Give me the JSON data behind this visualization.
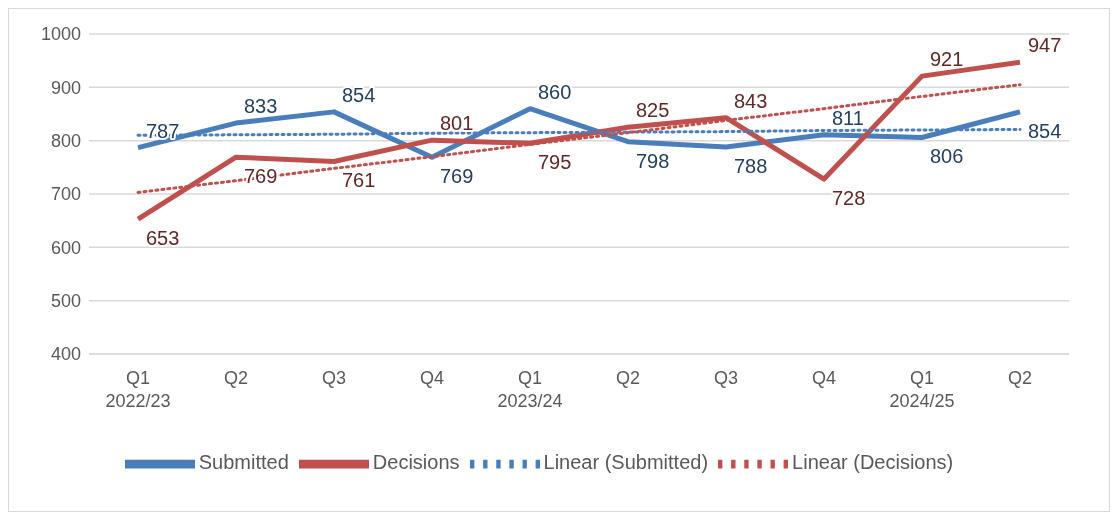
{
  "chart_data": {
    "type": "line",
    "categories": [
      "Q1 2022/23",
      "Q2",
      "Q3",
      "Q4",
      "Q1 2023/24",
      "Q2",
      "Q3",
      "Q4",
      "Q1 2024/25",
      "Q2"
    ],
    "series": [
      {
        "name": "Submitted",
        "color": "#4a7ebb",
        "values": [
          787,
          833,
          854,
          769,
          860,
          798,
          788,
          811,
          806,
          854
        ],
        "value_labels": [
          "787",
          "833",
          "854",
          "769",
          "860",
          "798",
          "788",
          "811",
          "806",
          "854"
        ]
      },
      {
        "name": "Decisions",
        "color": "#c0504d",
        "values": [
          653,
          769,
          761,
          801,
          795,
          825,
          843,
          728,
          921,
          947
        ],
        "value_labels": [
          "653",
          "769",
          "761",
          "801",
          "795",
          "825",
          "843",
          "728",
          "921",
          "947"
        ]
      },
      {
        "name": "Linear (Submitted)",
        "color": "#4a7ebb",
        "line_style": "dotted",
        "values": [
          810,
          811,
          812,
          814,
          815,
          816,
          817,
          819,
          820,
          821
        ]
      },
      {
        "name": "Linear (Decisions)",
        "color": "#c0504d",
        "line_style": "dotted",
        "values": [
          703,
          725,
          748,
          770,
          793,
          815,
          838,
          860,
          883,
          905
        ]
      }
    ],
    "ylim": [
      400,
      1000
    ],
    "yticks": [
      400,
      500,
      600,
      700,
      800,
      900,
      1000
    ],
    "grid": "y",
    "legend": "bottom",
    "marker": "none"
  }
}
